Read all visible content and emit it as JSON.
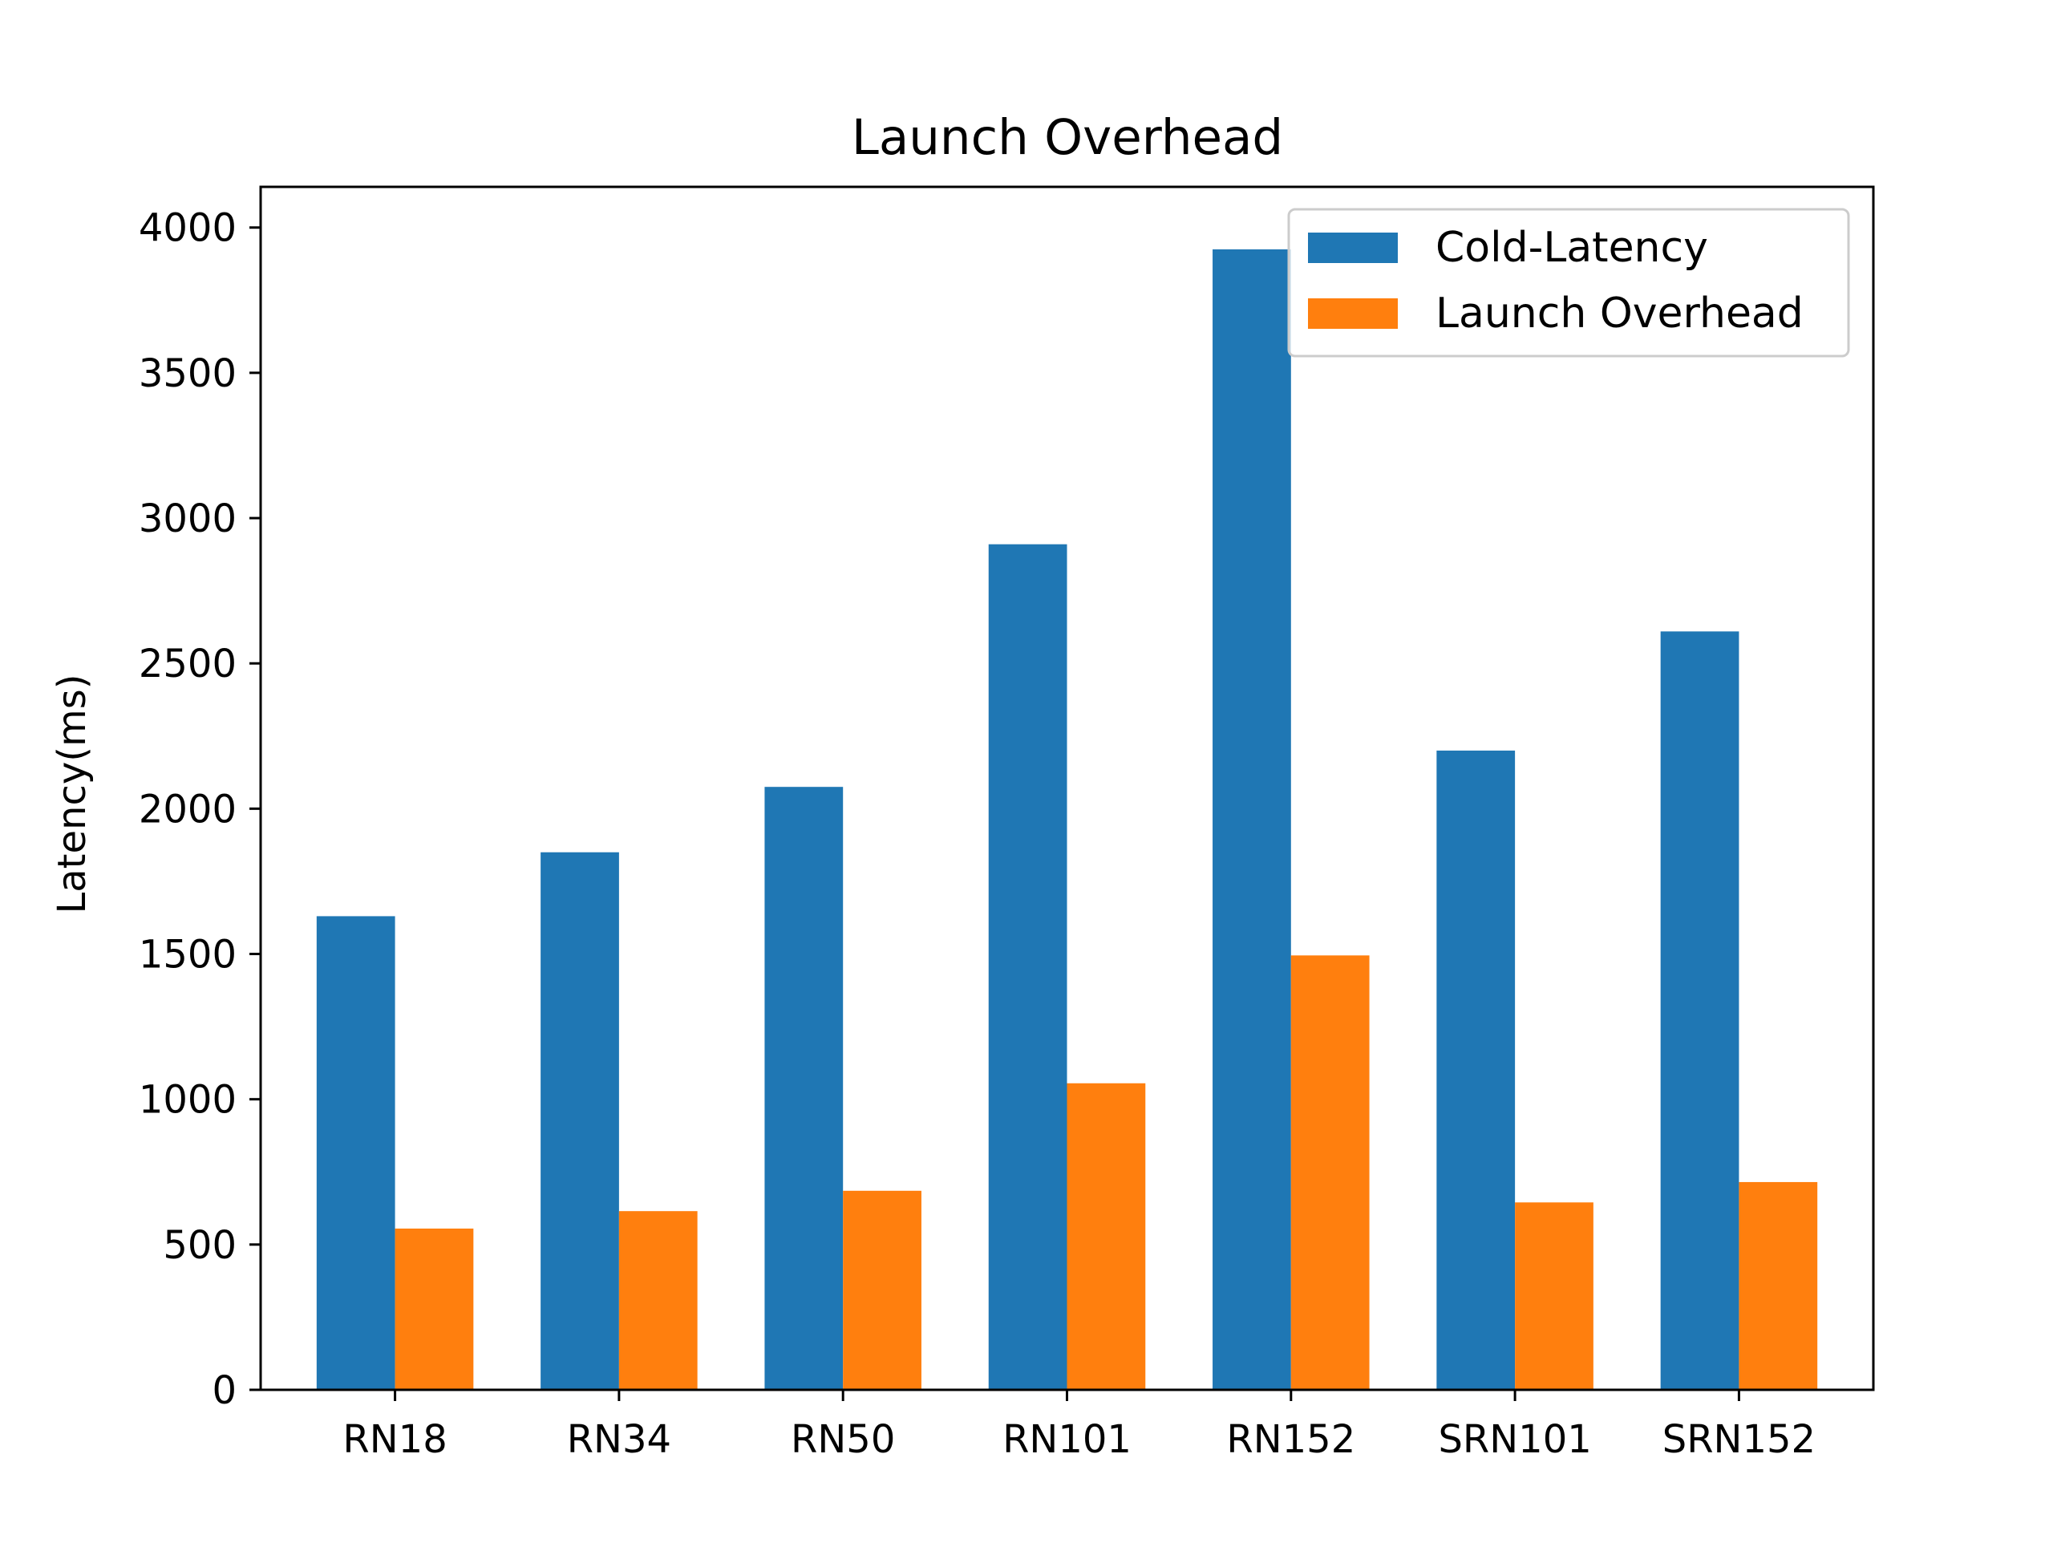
{
  "chart_data": {
    "type": "bar",
    "title": "Launch Overhead",
    "xlabel": "",
    "ylabel": "Latency(ms)",
    "categories": [
      "RN18",
      "RN34",
      "RN50",
      "RN101",
      "RN152",
      "SRN101",
      "SRN152"
    ],
    "series": [
      {
        "name": "Cold-Latency",
        "color": "#1f77b4",
        "values": [
          1630,
          1850,
          2075,
          2910,
          3925,
          2200,
          2610
        ]
      },
      {
        "name": "Launch Overhead",
        "color": "#ff7f0e",
        "values": [
          555,
          615,
          685,
          1055,
          1495,
          645,
          715
        ]
      }
    ],
    "ylim": [
      0,
      4140
    ],
    "yticks": [
      0,
      500,
      1000,
      1500,
      2000,
      2500,
      3000,
      3500,
      4000
    ],
    "grid": false,
    "legend_position": "top-right"
  }
}
